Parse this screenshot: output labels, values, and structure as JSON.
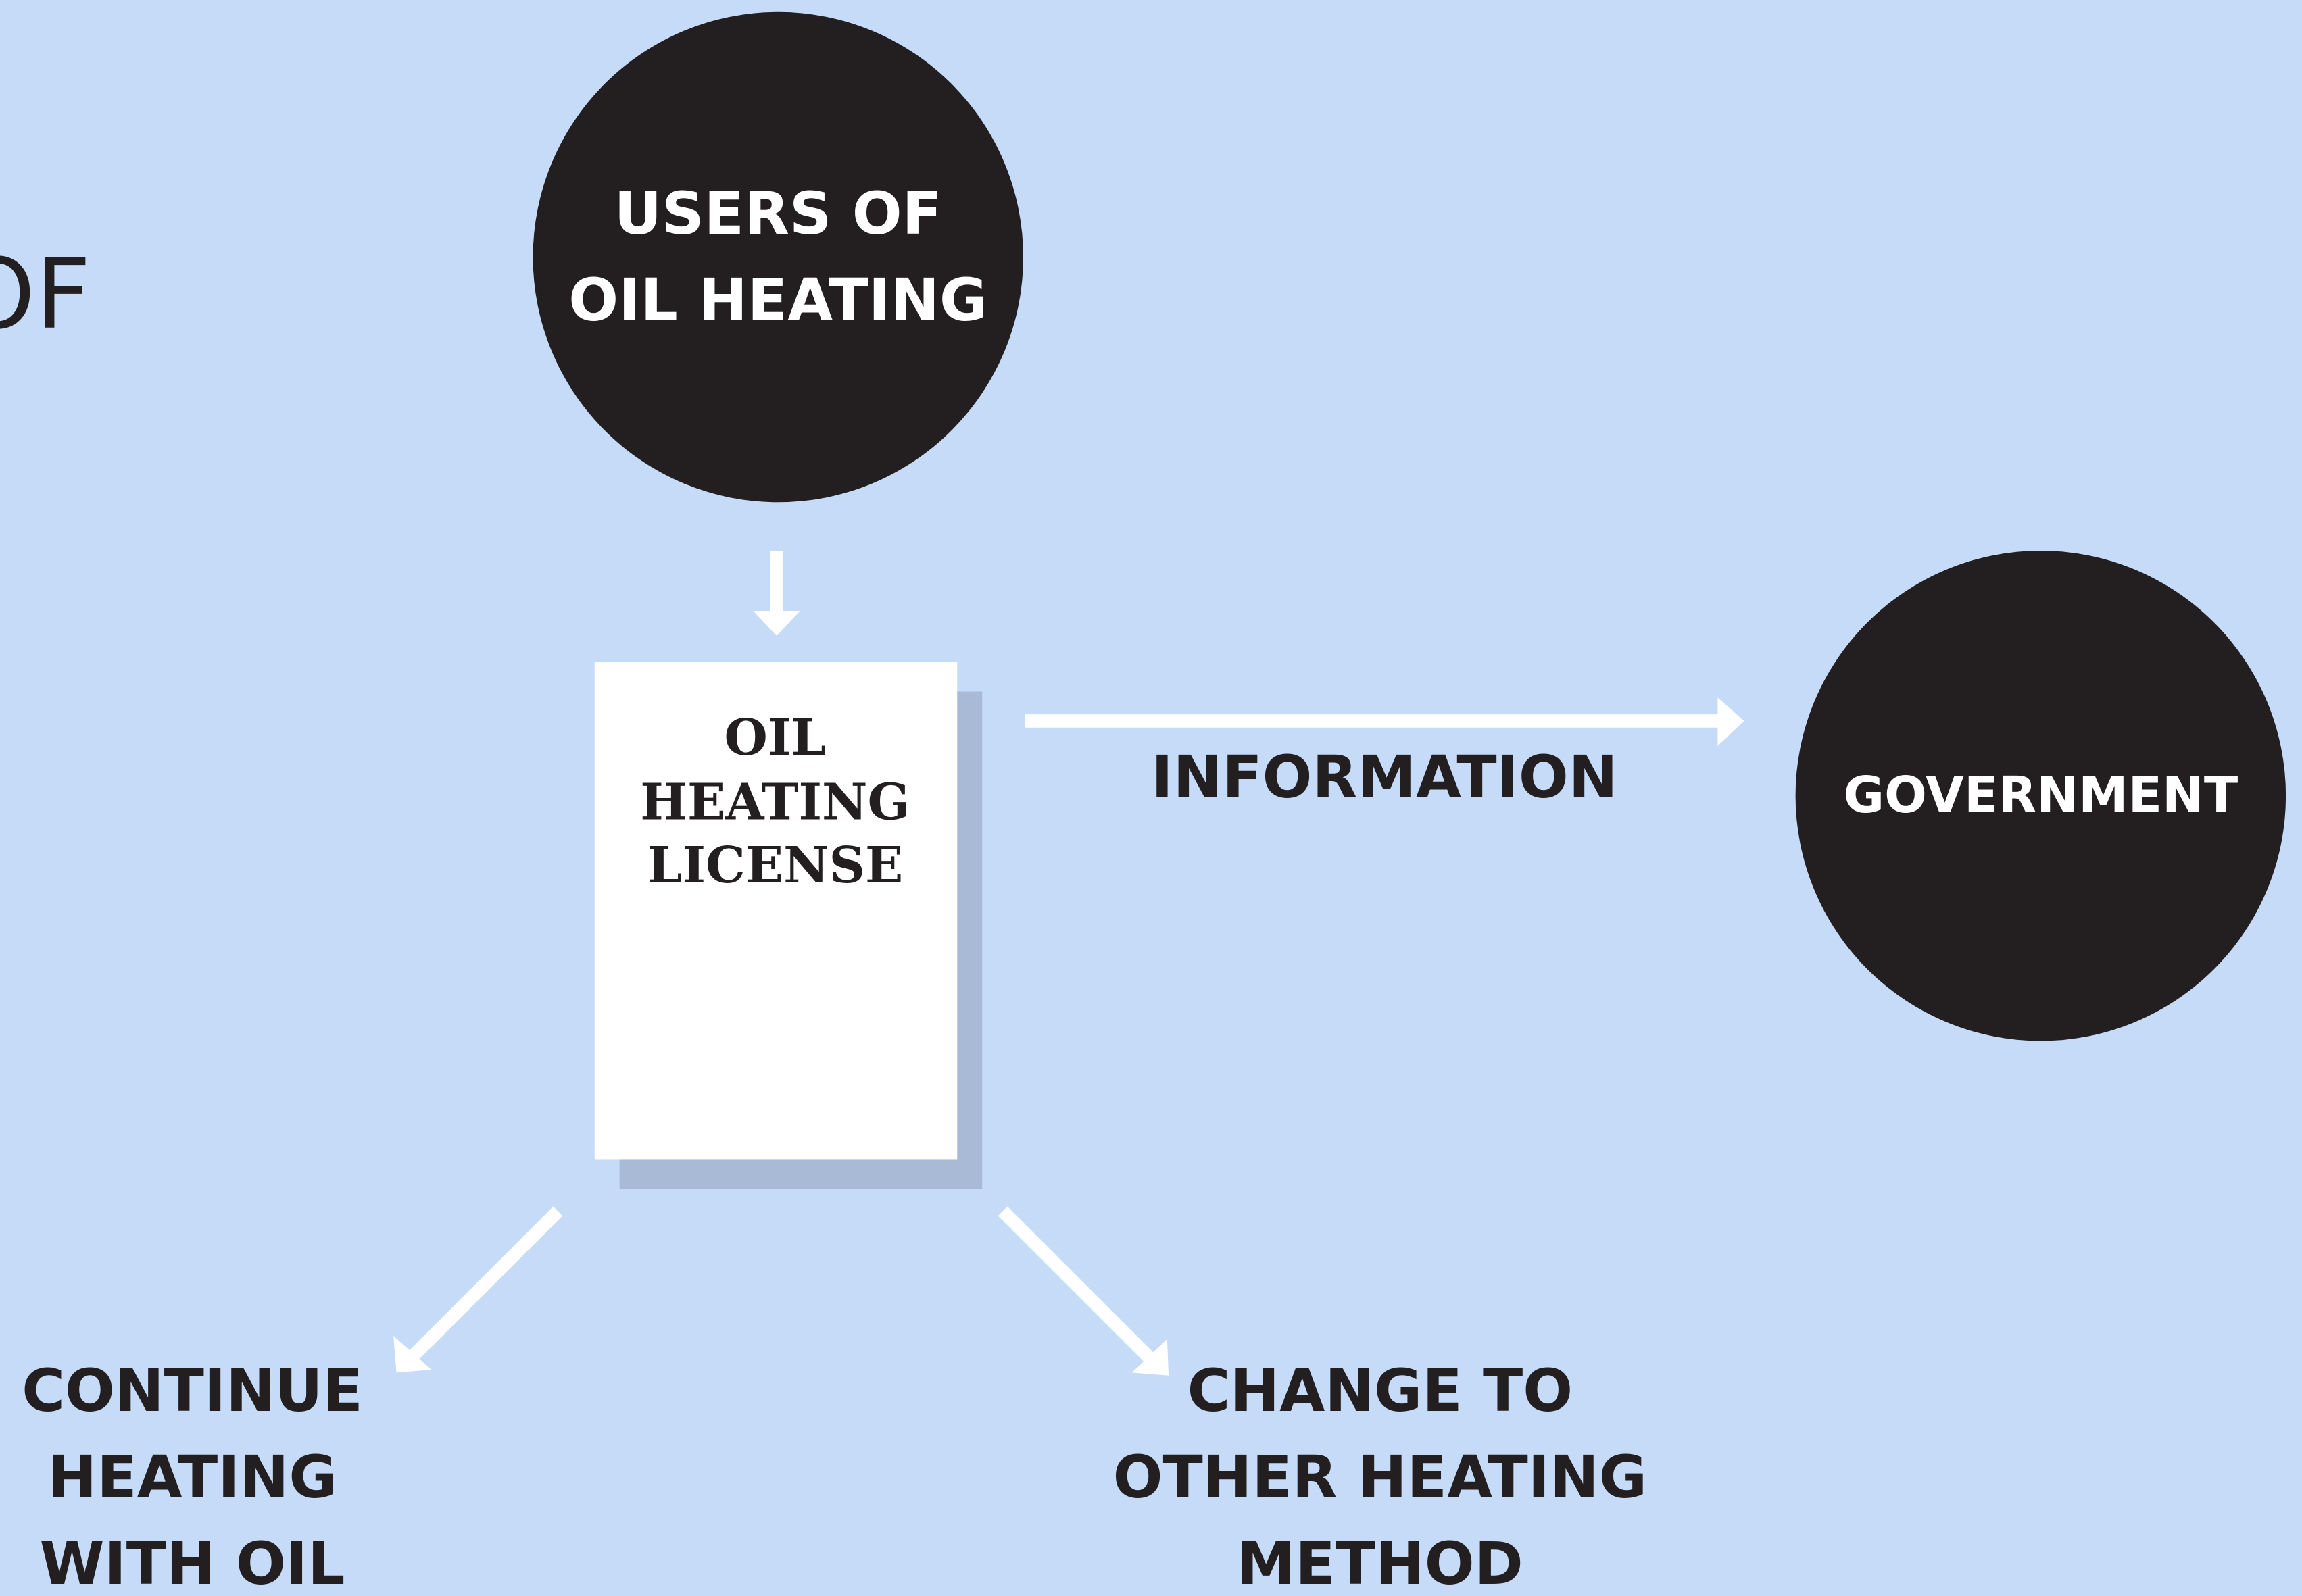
{
  "header_fragment": "OF",
  "nodes": [
    {
      "label": [
        "USERS OF",
        "OIL HEATING"
      ]
    },
    {
      "label": [
        "OIL",
        "HEATING",
        "LICENSE"
      ]
    },
    {
      "label": [
        "GOVERNMENT"
      ]
    },
    {
      "label": [
        "CONTINUE",
        "HEATING",
        "WITH OIL"
      ]
    },
    {
      "label": [
        "CHANGE TO",
        "OTHER HEATING",
        "METHOD"
      ]
    }
  ],
  "edges": [
    {
      "label": "INFORMATION"
    }
  ]
}
